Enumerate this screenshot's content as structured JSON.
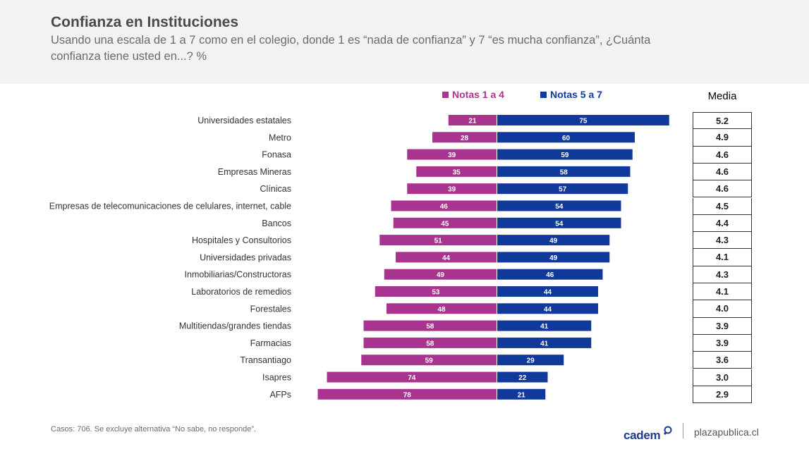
{
  "header": {
    "title": "Confianza en Instituciones",
    "subtitle": "Usando una escala de 1 a 7 como en el colegio, donde 1 es “nada de confianza” y 7 “es mucha confianza”, ¿Cuánta confianza tiene usted en...? %"
  },
  "legend": {
    "low_label": "Notas 1 a 4",
    "high_label": "Notas 5 a 7",
    "media_label": "Media"
  },
  "colors": {
    "low": "#a8348f",
    "high": "#10399b"
  },
  "chart_data": {
    "type": "bar",
    "orientation": "diverging-horizontal",
    "title": "Confianza en Instituciones",
    "categories": [
      "Universidades estatales",
      "Metro",
      "Fonasa",
      "Empresas Mineras",
      "Clínicas",
      "Empresas de telecomunicaciones de celulares, internet, cable",
      "Bancos",
      "Hospitales y Consultorios",
      "Universidades privadas",
      "Inmobiliarias/Constructoras",
      "Laboratorios de remedios",
      "Forestales",
      "Multitiendas/grandes tiendas",
      "Farmacias",
      "Transantiago",
      "Isapres",
      "AFPs"
    ],
    "series": [
      {
        "name": "Notas 1 a 4",
        "values": [
          21,
          28,
          39,
          35,
          39,
          46,
          45,
          51,
          44,
          49,
          53,
          48,
          58,
          58,
          59,
          74,
          78
        ]
      },
      {
        "name": "Notas 5 a 7",
        "values": [
          75,
          60,
          59,
          58,
          57,
          54,
          54,
          49,
          49,
          46,
          44,
          44,
          41,
          41,
          29,
          22,
          21
        ]
      }
    ],
    "media": [
      "5.2",
      "4.9",
      "4.6",
      "4.6",
      "4.6",
      "4.5",
      "4.4",
      "4.3",
      "4.1",
      "4.3",
      "4.1",
      "4.0",
      "3.9",
      "3.9",
      "3.6",
      "3.0",
      "2.9"
    ],
    "xlim": [
      -80,
      80
    ],
    "legend": "top"
  },
  "footer": {
    "note": "Casos: 706. Se excluye alternativa “No sabe, no responde”.",
    "logo_cadem": "cadem",
    "logo_plaza": "plazapublica.cl"
  }
}
